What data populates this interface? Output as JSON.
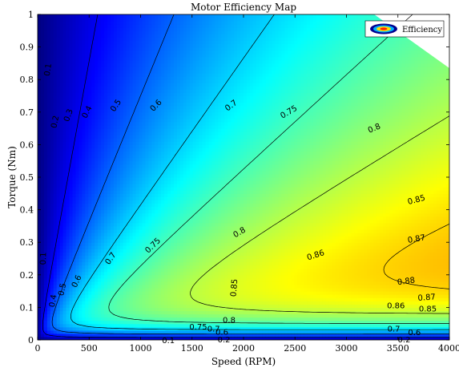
{
  "chart_data": {
    "type": "heatmap",
    "title": "Motor Efficiency Map",
    "xlabel": "Speed (RPM)",
    "ylabel": "Torque (Nm)",
    "xlim": [
      0,
      4000
    ],
    "ylim": [
      0,
      1
    ],
    "xticks": [
      0,
      500,
      1000,
      1500,
      2000,
      2500,
      3000,
      3500,
      4000
    ],
    "yticks": [
      0,
      0.1,
      0.2,
      0.3,
      0.4,
      0.5,
      0.6,
      0.7,
      0.8,
      0.9,
      1
    ],
    "xtick_labels": [
      "0",
      "500",
      "1000",
      "1500",
      "2000",
      "2500",
      "3000",
      "3500",
      "4000"
    ],
    "ytick_labels": [
      "0",
      "0.1",
      "0.2",
      "0.3",
      "0.4",
      "0.5",
      "0.6",
      "0.7",
      "0.8",
      "0.9",
      "1"
    ],
    "colormap": "jet",
    "value_range": [
      0,
      0.9
    ],
    "legend": {
      "label": "Efficiency",
      "position": "top-right"
    },
    "max_power_boundary": [
      [
        3270,
        1.0
      ],
      [
        4000,
        0.835
      ]
    ],
    "contour_levels": [
      0.1,
      0.2,
      0.3,
      0.4,
      0.5,
      0.6,
      0.7,
      0.75,
      0.8,
      0.85,
      0.86,
      0.87,
      0.88
    ],
    "contour_labels": [
      {
        "text": "0.1",
        "x": 100,
        "y": 0.83,
        "angle": -82
      },
      {
        "text": "0.2",
        "x": 170,
        "y": 0.67,
        "angle": -78
      },
      {
        "text": "0.3",
        "x": 300,
        "y": 0.69,
        "angle": -70
      },
      {
        "text": "0.4",
        "x": 480,
        "y": 0.7,
        "angle": -63
      },
      {
        "text": "0.5",
        "x": 760,
        "y": 0.72,
        "angle": -57
      },
      {
        "text": "0.6",
        "x": 1150,
        "y": 0.72,
        "angle": -47
      },
      {
        "text": "0.7",
        "x": 1880,
        "y": 0.72,
        "angle": -37
      },
      {
        "text": "0.75",
        "x": 2440,
        "y": 0.7,
        "angle": -30
      },
      {
        "text": "0.8",
        "x": 3270,
        "y": 0.65,
        "angle": -23
      },
      {
        "text": "0.85",
        "x": 3680,
        "y": 0.43,
        "angle": -15
      },
      {
        "text": "0.87",
        "x": 3680,
        "y": 0.31,
        "angle": -10
      },
      {
        "text": "0.75",
        "x": 1120,
        "y": 0.29,
        "angle": -44
      },
      {
        "text": "0.8",
        "x": 1960,
        "y": 0.33,
        "angle": -30
      },
      {
        "text": "0.86",
        "x": 2700,
        "y": 0.26,
        "angle": -18
      },
      {
        "text": "0.88",
        "x": 3580,
        "y": 0.18,
        "angle": -8
      },
      {
        "text": "0.87",
        "x": 3780,
        "y": 0.13,
        "angle": -4
      },
      {
        "text": "0.86",
        "x": 3480,
        "y": 0.105,
        "angle": 0
      },
      {
        "text": "0.85",
        "x": 3790,
        "y": 0.095,
        "angle": 0
      },
      {
        "text": "0.7",
        "x": 710,
        "y": 0.25,
        "angle": -55
      },
      {
        "text": "0.6",
        "x": 380,
        "y": 0.18,
        "angle": -65
      },
      {
        "text": "0.5",
        "x": 240,
        "y": 0.155,
        "angle": -78
      },
      {
        "text": "0.4",
        "x": 150,
        "y": 0.12,
        "angle": -80
      },
      {
        "text": "0.1",
        "x": 55,
        "y": 0.25,
        "angle": -88
      },
      {
        "text": "0.85",
        "x": 1910,
        "y": 0.16,
        "angle": -85
      },
      {
        "text": "0.8",
        "x": 1860,
        "y": 0.06,
        "angle": 0
      },
      {
        "text": "0.75",
        "x": 1560,
        "y": 0.04,
        "angle": 0
      },
      {
        "text": "0.7",
        "x": 1710,
        "y": 0.033,
        "angle": 0
      },
      {
        "text": "0.6",
        "x": 1790,
        "y": 0.023,
        "angle": 0
      },
      {
        "text": "0.1",
        "x": 1270,
        "y": -0.003,
        "angle": 0
      },
      {
        "text": "0.2",
        "x": 1810,
        "y": 0.0,
        "angle": 0
      },
      {
        "text": "0.7",
        "x": 3460,
        "y": 0.033,
        "angle": 0
      },
      {
        "text": "0.6",
        "x": 3660,
        "y": 0.022,
        "angle": 0
      },
      {
        "text": "0.2",
        "x": 3560,
        "y": 0.0,
        "angle": 0
      }
    ]
  }
}
